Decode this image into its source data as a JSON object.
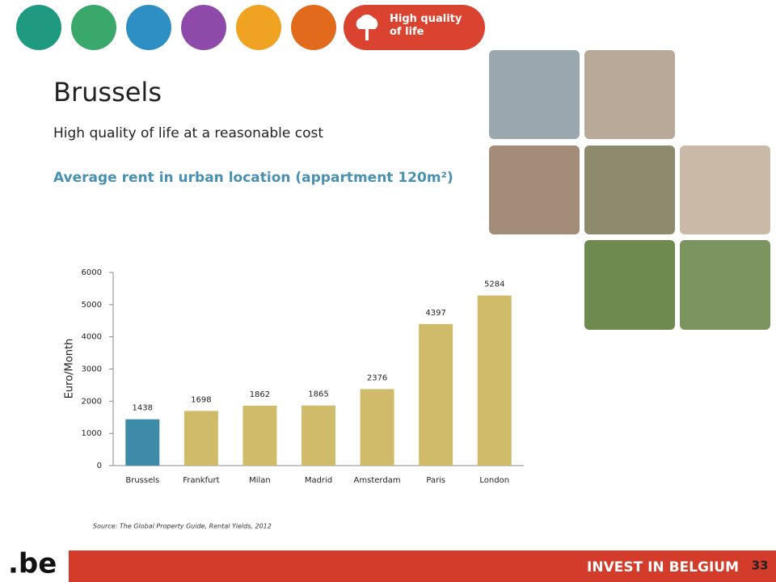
{
  "header": {
    "tab_label": "High quality of life",
    "title": "Brussels",
    "subtitle": "High quality of life at a reasonable cost"
  },
  "chart_data": {
    "type": "bar",
    "title": "Average rent in urban location (appartment 120m²)",
    "ylabel": "Euro/Month",
    "categories": [
      "Brussels",
      "Frankfurt",
      "Milan",
      "Madrid",
      "Amsterdam",
      "Paris",
      "London"
    ],
    "values": [
      1438,
      1698,
      1862,
      1865,
      2376,
      4397,
      5284
    ],
    "colors": [
      "#3d8ba8",
      "#cfbb6a",
      "#cfbb6a",
      "#cfbb6a",
      "#cfbb6a",
      "#cfbb6a",
      "#cfbb6a"
    ],
    "ylim": [
      0,
      6000
    ],
    "yticks": [
      0,
      1000,
      2000,
      3000,
      4000,
      5000,
      6000
    ],
    "grid": false
  },
  "source": "Source: The Global Property Guide, Rental Yields, 2012",
  "footer": {
    "logo": ".be",
    "brand": "INVEST IN BELGIUM",
    "page": "33"
  }
}
